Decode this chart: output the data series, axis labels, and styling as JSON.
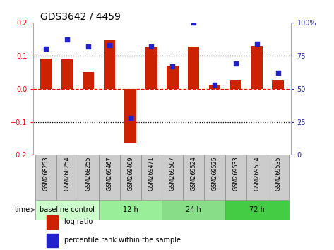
{
  "title": "GDS3642 / 4459",
  "samples": [
    "GSM268253",
    "GSM268254",
    "GSM268255",
    "GSM269467",
    "GSM269469",
    "GSM269471",
    "GSM269507",
    "GSM269524",
    "GSM269525",
    "GSM269533",
    "GSM269534",
    "GSM269535"
  ],
  "log_ratio": [
    0.09,
    0.088,
    0.05,
    0.148,
    -0.165,
    0.125,
    0.07,
    0.128,
    0.012,
    0.028,
    0.13,
    0.028
  ],
  "percentile_rank": [
    80,
    87,
    82,
    83,
    28,
    82,
    67,
    100,
    53,
    69,
    84,
    62
  ],
  "bar_color": "#cc2200",
  "pct_color": "#2222cc",
  "ylim": [
    -0.2,
    0.2
  ],
  "right_ylim": [
    0,
    100
  ],
  "right_yticks": [
    0,
    25,
    50,
    75,
    100
  ],
  "right_yticklabels": [
    "0",
    "25",
    "50",
    "75",
    "100%"
  ],
  "left_yticks": [
    -0.2,
    -0.1,
    0,
    0.1,
    0.2
  ],
  "time_groups": [
    {
      "label": "baseline control",
      "start": 0,
      "end": 3,
      "color": "#ccffcc"
    },
    {
      "label": "12 h",
      "start": 3,
      "end": 6,
      "color": "#99ee99"
    },
    {
      "label": "24 h",
      "start": 6,
      "end": 9,
      "color": "#88dd88"
    },
    {
      "label": "72 h",
      "start": 9,
      "end": 12,
      "color": "#44cc44"
    }
  ],
  "legend_items": [
    {
      "label": "log ratio",
      "color": "#cc2200"
    },
    {
      "label": "percentile rank within the sample",
      "color": "#2222cc"
    }
  ],
  "bar_width": 0.55,
  "tick_label_fontsize": 7,
  "title_fontsize": 10,
  "bg_color": "#ffffff",
  "xticklabel_bg": "#cccccc",
  "n_samples": 12
}
